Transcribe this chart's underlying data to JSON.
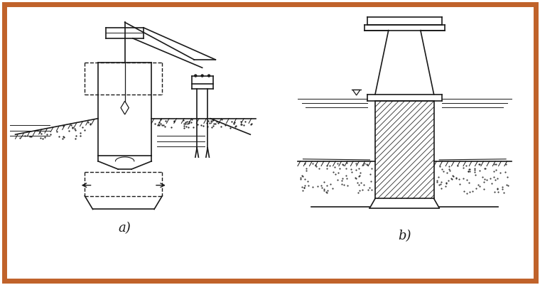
{
  "bg_color": "#ffffff",
  "border_color": "#c0622a",
  "label_a": "a)",
  "label_b": "b)",
  "line_color": "#1a1a1a",
  "line_width": 1.2,
  "dashed_lw": 1.0
}
